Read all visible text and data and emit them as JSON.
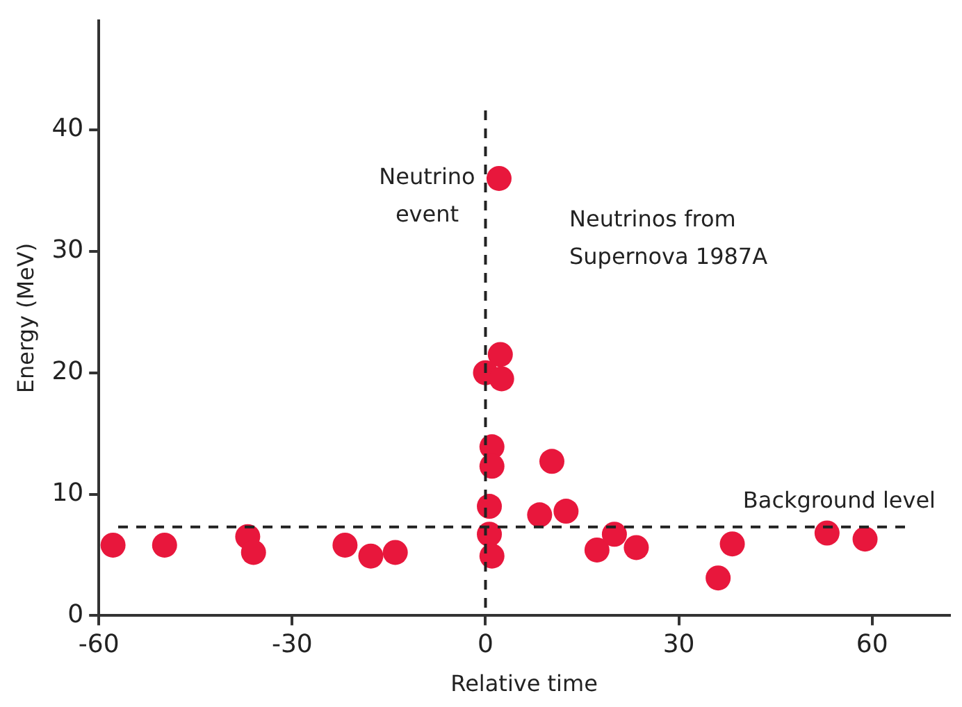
{
  "chart_data": {
    "type": "scatter",
    "xlabel": "Relative time",
    "ylabel": "Energy (MeV)",
    "x": [
      -57.8,
      -49.8,
      -36.9,
      -36,
      -21.8,
      -17.8,
      -14,
      2.1,
      2.3,
      0,
      2.5,
      1,
      1,
      10.3,
      0.6,
      8.4,
      12.5,
      0.6,
      1,
      17.3,
      20,
      23.4,
      36.1,
      38.3,
      53,
      58.9
    ],
    "series": [
      {
        "color": "#e8173c",
        "values": [
          5.8,
          5.8,
          6.5,
          5.2,
          5.8,
          4.9,
          5.2,
          36,
          21.5,
          20,
          19.5,
          13.9,
          12.3,
          12.7,
          9,
          8.3,
          8.6,
          6.7,
          4.9,
          5.4,
          6.7,
          5.6,
          3.1,
          5.9,
          6.8,
          6.3
        ]
      }
    ],
    "xlim": [
      -60,
      72
    ],
    "xticks": [
      -60,
      -30,
      0,
      30,
      60
    ],
    "ylim": [
      0,
      49
    ],
    "yticks": [
      0,
      10,
      20,
      30,
      40
    ],
    "grid": false,
    "legend": false,
    "marker": "circle",
    "ref_lines": [
      {
        "axis": "y",
        "value": 7.3,
        "label": "Background level",
        "line_style": "dashed",
        "color": "#222222"
      },
      {
        "axis": "x",
        "value": 0,
        "label": "Neutrino event",
        "line_style": "dashed",
        "color": "#222222"
      }
    ],
    "annotations": [
      "Neutrinos from Supernova 1987A"
    ]
  }
}
